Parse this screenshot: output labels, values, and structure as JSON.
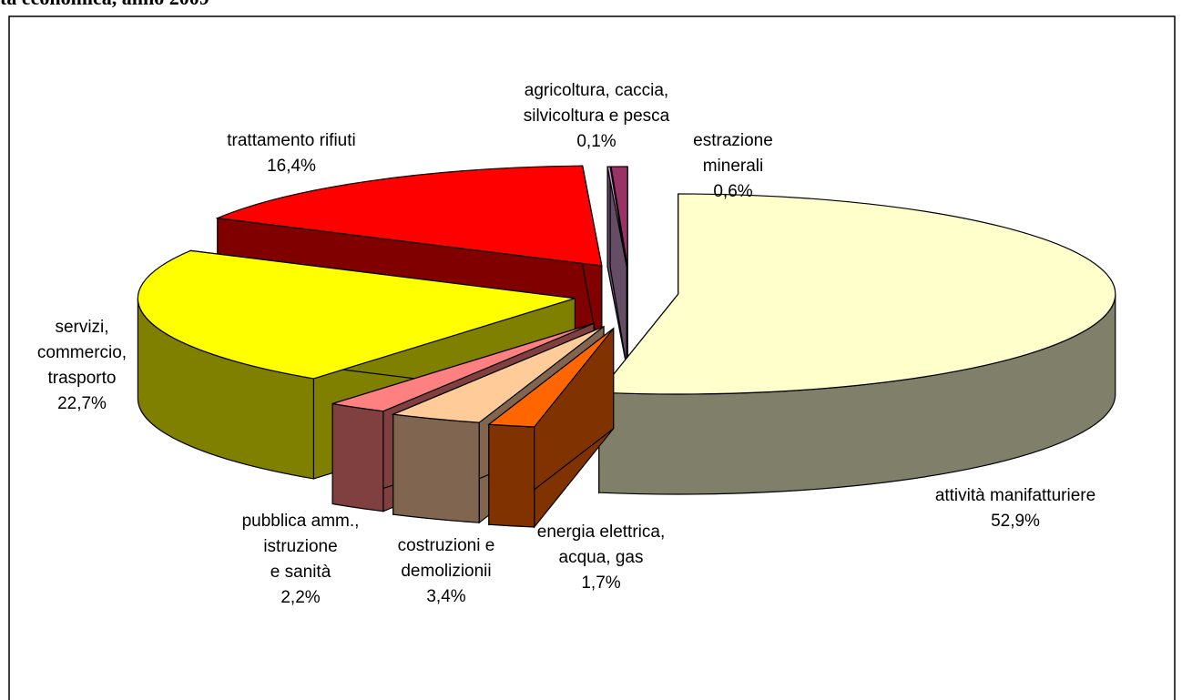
{
  "chart_data": {
    "type": "pie3d",
    "title": "ta economica, anno 2009",
    "categories": [
      [
        "attività manifatturiere"
      ],
      [
        "energia elettrica,",
        "acqua, gas"
      ],
      [
        "costruzioni e",
        "demolizionii"
      ],
      [
        "pubblica amm.,",
        "istruzione",
        "e sanità"
      ],
      [
        "servizi,",
        "commercio,",
        "trasporto"
      ],
      [
        "trattamento rifiuti"
      ],
      [
        "agricoltura, caccia,",
        "silvicoltura e pesca"
      ],
      [
        "estrazione",
        "minerali"
      ]
    ],
    "values": [
      52.9,
      1.7,
      3.4,
      2.2,
      22.7,
      16.4,
      0.1,
      0.6
    ],
    "value_labels": [
      "52,9%",
      "1,7%",
      "3,4%",
      "2,2%",
      "22,7%",
      "16,4%",
      "0,1%",
      "0,6%"
    ],
    "colors": [
      "#FFFFCC",
      "#FF6600",
      "#FFCC99",
      "#FF8080",
      "#FFFF00",
      "#FF0000",
      "#CC99CC",
      "#993366"
    ],
    "side_colors": [
      "#80806A",
      "#803300",
      "#806650",
      "#804040",
      "#808000",
      "#800000",
      "#664D66",
      "#4D1A33"
    ]
  }
}
